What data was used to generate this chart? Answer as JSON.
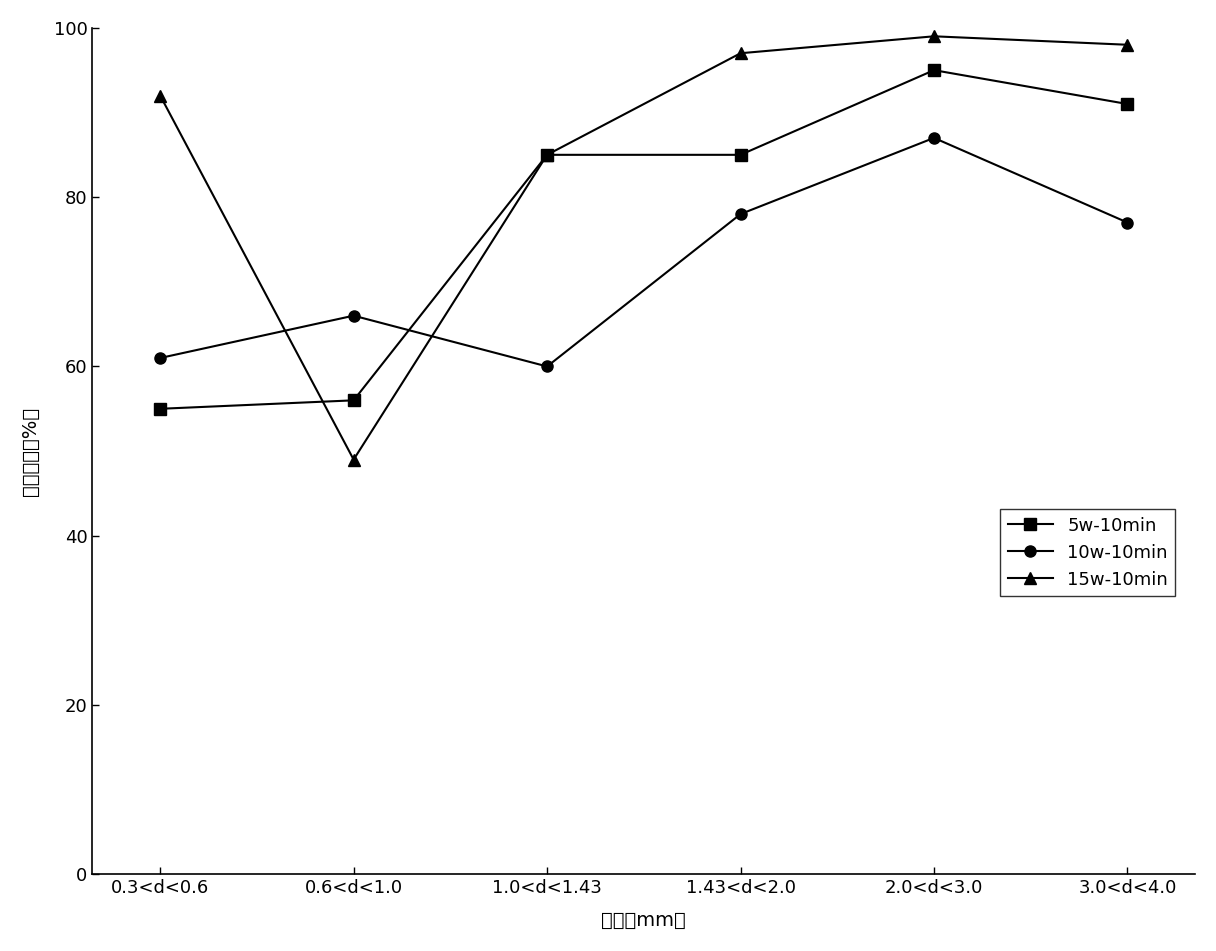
{
  "categories": [
    "0.3<d<0.6",
    "0.6<d<1.0",
    "1.0<d<1.43",
    "1.43<d<2.0",
    "2.0<d<3.0",
    "3.0<d<4.0"
  ],
  "x_positions": [
    0,
    1,
    2,
    3,
    4,
    5
  ],
  "series": [
    {
      "label": "5w-10min",
      "values": [
        55,
        56,
        85,
        85,
        95,
        91
      ],
      "marker": "s",
      "color": "#000000"
    },
    {
      "label": "10w-10min",
      "values": [
        61,
        66,
        60,
        78,
        87,
        77
      ],
      "marker": "o",
      "color": "#000000"
    },
    {
      "label": "15w-10min",
      "values": [
        92,
        49,
        85,
        97,
        99,
        98
      ],
      "marker": "^",
      "color": "#000000"
    }
  ],
  "ylabel": "颗粒化率（%）",
  "xlabel": "粒径（mm）",
  "ylim": [
    0,
    100
  ],
  "yticks": [
    0,
    20,
    40,
    60,
    80,
    100
  ],
  "background_color": "#ffffff",
  "line_color": "#000000",
  "marker_size": 8,
  "line_width": 1.5,
  "xlim": [
    -0.35,
    5.35
  ]
}
